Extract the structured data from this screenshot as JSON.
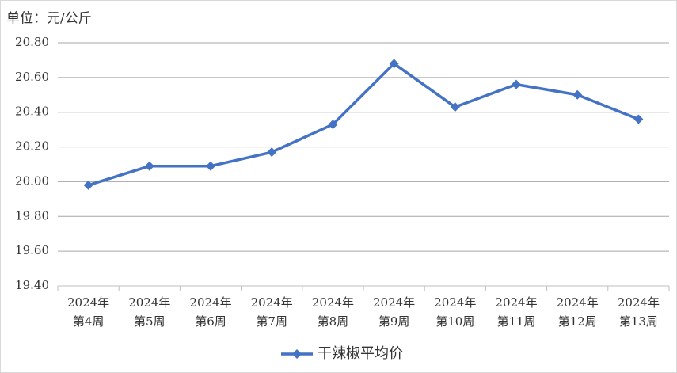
{
  "chart_data": {
    "type": "line",
    "annotation": "单位：元/公斤",
    "categories": [
      [
        "2024年",
        "第4周"
      ],
      [
        "2024年",
        "第5周"
      ],
      [
        "2024年",
        "第6周"
      ],
      [
        "2024年",
        "第7周"
      ],
      [
        "2024年",
        "第8周"
      ],
      [
        "2024年",
        "第9周"
      ],
      [
        "2024年",
        "第10周"
      ],
      [
        "2024年",
        "第11周"
      ],
      [
        "2024年",
        "第12周"
      ],
      [
        "2024年",
        "第13周"
      ]
    ],
    "series": [
      {
        "name": "干辣椒平均价",
        "color": "#4472c4",
        "values": [
          19.98,
          20.09,
          20.09,
          20.17,
          20.33,
          20.68,
          20.43,
          20.56,
          20.5,
          20.36
        ]
      }
    ],
    "ylim": [
      19.4,
      20.8
    ],
    "yticks": [
      {
        "value": 19.4,
        "label": "19.40"
      },
      {
        "value": 19.6,
        "label": "19.60"
      },
      {
        "value": 19.8,
        "label": "19.80"
      },
      {
        "value": 20.0,
        "label": "20.00"
      },
      {
        "value": 20.2,
        "label": "20.20"
      },
      {
        "value": 20.4,
        "label": "20.40"
      },
      {
        "value": 20.6,
        "label": "20.60"
      },
      {
        "value": 20.8,
        "label": "20.80"
      }
    ],
    "grid": true,
    "legend": "bottom"
  }
}
